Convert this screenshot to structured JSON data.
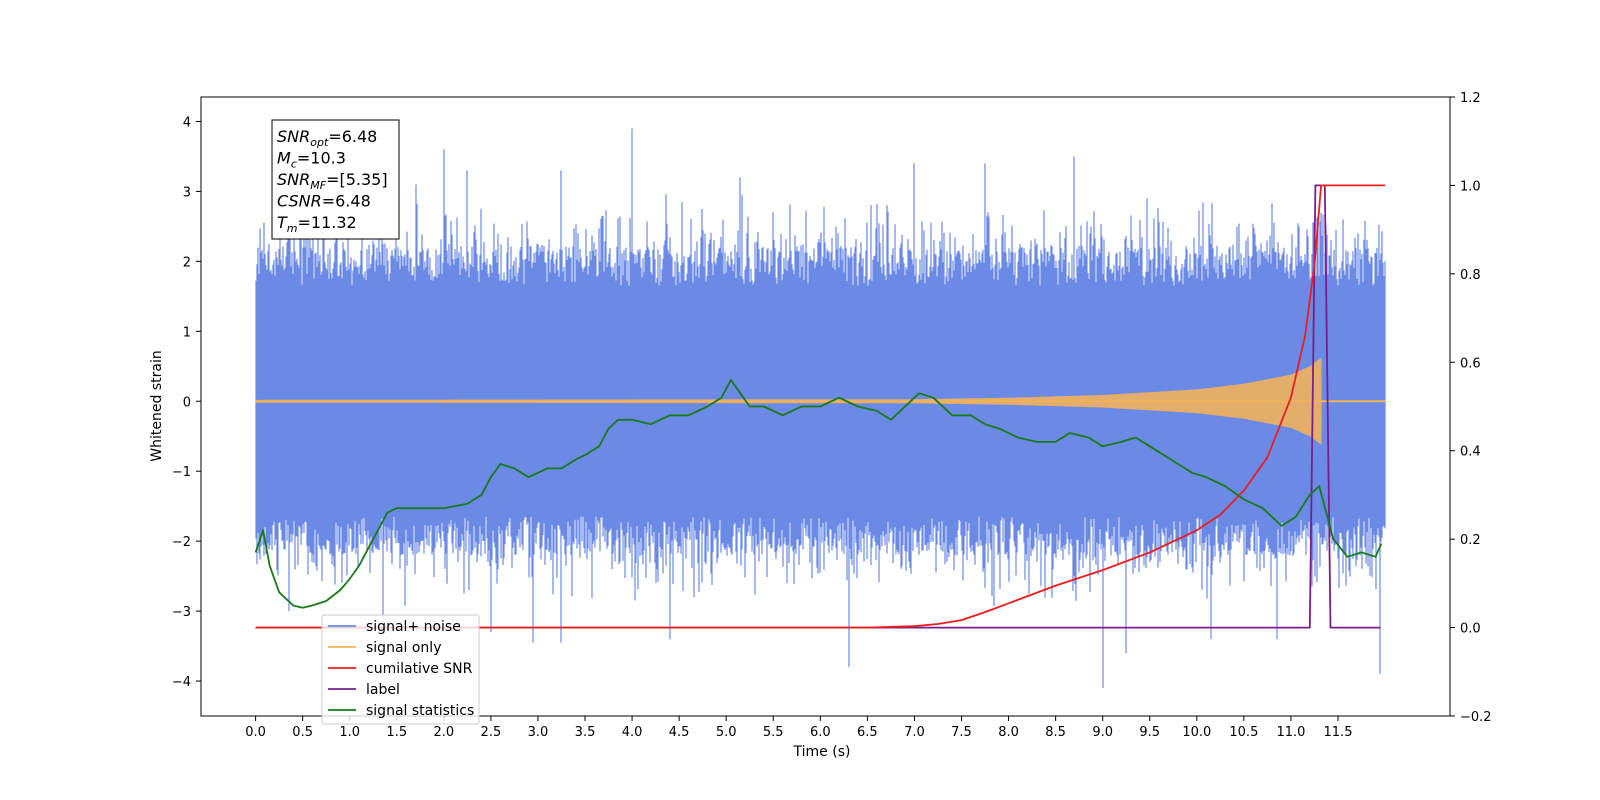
{
  "chart_data": {
    "type": "line",
    "xlabel": "Time (s)",
    "ylabel_left": "Whitened strain",
    "ylabel_right": "",
    "xlim": [
      -0.58,
      12.69
    ],
    "ylim_left": [
      -4.5,
      4.35
    ],
    "ylim_right": [
      -0.2,
      1.2
    ],
    "x_ticks": [
      0.0,
      0.5,
      1.0,
      1.5,
      2.0,
      2.5,
      3.0,
      3.5,
      4.0,
      4.5,
      5.0,
      5.5,
      6.0,
      6.5,
      7.0,
      7.5,
      8.0,
      8.5,
      9.0,
      9.5,
      10.0,
      10.5,
      11.0,
      11.5
    ],
    "x_tick_labels": [
      "0.0",
      "0.5",
      "1.0",
      "1.5",
      "2.0",
      "2.5",
      "3.0",
      "3.5",
      "4.0",
      "4.5",
      "5.0",
      "5.5",
      "6.0",
      "6.5",
      "7.0",
      "7.5",
      "8.0",
      "8.5",
      "9.0",
      "9.5",
      "10.0",
      "10.5",
      "11.0",
      "11.5"
    ],
    "y_ticks_left": [
      4,
      3,
      2,
      1,
      0,
      -1,
      -2,
      -3,
      -4
    ],
    "y_tick_labels_left": [
      "4",
      "3",
      "2",
      "1",
      "0",
      "−1",
      "−2",
      "−3",
      "−4"
    ],
    "y_ticks_right": [
      1.2,
      1.0,
      0.8,
      0.6,
      0.4,
      0.2,
      0.0,
      -0.2
    ],
    "y_tick_labels_right": [
      "1.2",
      "1.0",
      "0.8",
      "0.6",
      "0.4",
      "0.2",
      "0.0",
      "−0.2"
    ],
    "grid": false,
    "legend_position": "bottom-left",
    "info_box": {
      "lines": [
        {
          "main": "SNR",
          "sub": "opt",
          "rest": "=6.48"
        },
        {
          "main": "M",
          "sub": "c",
          "rest": "=10.3"
        },
        {
          "main": "SNR",
          "sub": "MF",
          "rest": "=[5.35]"
        },
        {
          "main": "CSNR",
          "sub": "",
          "rest": "=6.48"
        },
        {
          "main": "T",
          "sub": "m",
          "rest": "=11.32"
        }
      ]
    },
    "series": [
      {
        "name": "signal+ noise",
        "axis": "left",
        "color": "#6b8ae6",
        "style": "noise",
        "x_range": [
          0.0,
          12.0
        ],
        "amplitude_envelope": [
          -2.0,
          2.0
        ],
        "typical_max": 2.2,
        "typical_min": -2.2,
        "peaks": [
          [
            1.7,
            3.1
          ],
          [
            2.0,
            3.6
          ],
          [
            2.25,
            3.3
          ],
          [
            3.25,
            3.3
          ],
          [
            4.0,
            3.9
          ],
          [
            5.15,
            3.2
          ],
          [
            7.0,
            3.4
          ],
          [
            7.75,
            3.4
          ],
          [
            8.7,
            3.5
          ],
          [
            11.55,
            2.6
          ]
        ],
        "troughs": [
          [
            0.35,
            -3.0
          ],
          [
            1.35,
            -3.1
          ],
          [
            2.5,
            -3.3
          ],
          [
            2.95,
            -3.45
          ],
          [
            3.25,
            -3.45
          ],
          [
            4.4,
            -3.4
          ],
          [
            6.3,
            -3.8
          ],
          [
            9.0,
            -4.1
          ],
          [
            9.25,
            -3.6
          ],
          [
            10.15,
            -3.4
          ],
          [
            10.85,
            -3.4
          ],
          [
            11.95,
            -3.9
          ]
        ]
      },
      {
        "name": "signal only",
        "axis": "left",
        "color": "#f7b454",
        "style": "chirp",
        "x_range": [
          0.0,
          12.0
        ],
        "amplitude": [
          [
            0.0,
            0.02
          ],
          [
            7.0,
            0.03
          ],
          [
            8.0,
            0.05
          ],
          [
            9.0,
            0.09
          ],
          [
            10.0,
            0.17
          ],
          [
            10.5,
            0.25
          ],
          [
            11.0,
            0.38
          ],
          [
            11.2,
            0.5
          ],
          [
            11.32,
            0.62
          ],
          [
            11.33,
            0.0
          ],
          [
            12.0,
            0.0
          ]
        ]
      },
      {
        "name": "cumilative SNR",
        "axis": "right",
        "color": "#ee1c1c",
        "x": [
          0.0,
          6.5,
          7.0,
          7.25,
          7.5,
          7.75,
          8.0,
          8.5,
          9.0,
          9.5,
          10.0,
          10.25,
          10.5,
          10.75,
          11.0,
          11.15,
          11.25,
          11.32,
          11.33,
          11.5,
          12.0
        ],
        "y": [
          0.0,
          0.0,
          0.003,
          0.008,
          0.017,
          0.035,
          0.055,
          0.095,
          0.13,
          0.17,
          0.22,
          0.255,
          0.31,
          0.385,
          0.52,
          0.66,
          0.82,
          1.0,
          1.0,
          1.0,
          1.0
        ]
      },
      {
        "name": "label",
        "axis": "right",
        "color": "#7a1f8a",
        "x": [
          0.0,
          11.2,
          11.26,
          11.36,
          11.42,
          11.95
        ],
        "y": [
          0.0,
          0.0,
          1.0,
          1.0,
          0.0,
          0.0
        ]
      },
      {
        "name": "signal statistics",
        "axis": "right",
        "color": "#1a7a1a",
        "x": [
          0.0,
          0.08,
          0.15,
          0.25,
          0.4,
          0.5,
          0.6,
          0.75,
          0.9,
          1.0,
          1.1,
          1.25,
          1.4,
          1.5,
          1.6,
          1.8,
          2.0,
          2.25,
          2.4,
          2.5,
          2.6,
          2.75,
          2.9,
          3.1,
          3.25,
          3.4,
          3.5,
          3.65,
          3.75,
          3.85,
          4.0,
          4.2,
          4.4,
          4.6,
          4.8,
          4.95,
          5.05,
          5.25,
          5.4,
          5.6,
          5.8,
          6.0,
          6.2,
          6.4,
          6.6,
          6.75,
          6.9,
          7.05,
          7.2,
          7.4,
          7.6,
          7.75,
          7.9,
          8.1,
          8.3,
          8.5,
          8.65,
          8.85,
          9.0,
          9.2,
          9.35,
          9.5,
          9.65,
          9.8,
          9.95,
          10.1,
          10.3,
          10.5,
          10.7,
          10.9,
          11.05,
          11.2,
          11.3,
          11.45,
          11.6,
          11.75,
          11.9,
          11.96
        ],
        "y": [
          0.17,
          0.22,
          0.14,
          0.08,
          0.05,
          0.045,
          0.05,
          0.06,
          0.085,
          0.11,
          0.14,
          0.2,
          0.26,
          0.27,
          0.27,
          0.27,
          0.27,
          0.28,
          0.3,
          0.34,
          0.37,
          0.36,
          0.34,
          0.36,
          0.36,
          0.38,
          0.39,
          0.41,
          0.45,
          0.47,
          0.47,
          0.46,
          0.48,
          0.48,
          0.5,
          0.52,
          0.56,
          0.5,
          0.5,
          0.48,
          0.5,
          0.5,
          0.52,
          0.5,
          0.49,
          0.47,
          0.5,
          0.53,
          0.52,
          0.48,
          0.48,
          0.46,
          0.45,
          0.43,
          0.42,
          0.42,
          0.44,
          0.43,
          0.41,
          0.42,
          0.43,
          0.41,
          0.39,
          0.37,
          0.35,
          0.34,
          0.32,
          0.29,
          0.27,
          0.23,
          0.25,
          0.3,
          0.32,
          0.2,
          0.16,
          0.17,
          0.16,
          0.19
        ]
      }
    ]
  }
}
